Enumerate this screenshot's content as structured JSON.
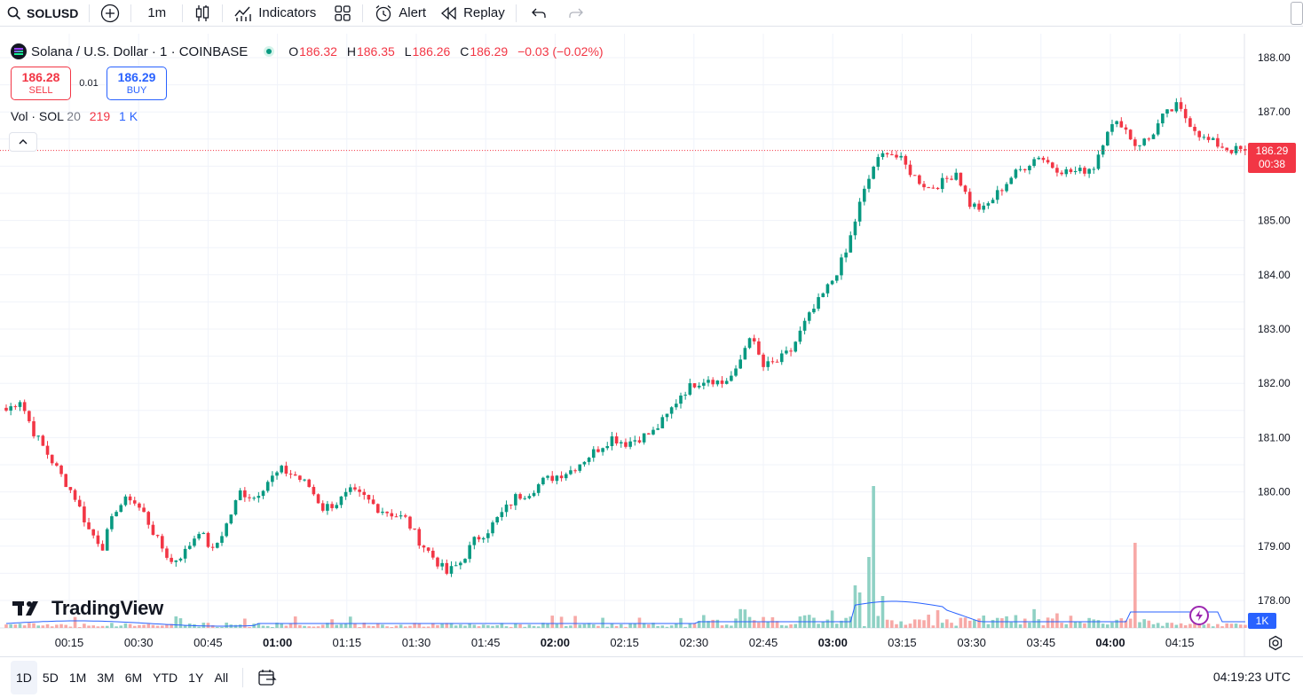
{
  "toolbar": {
    "symbol": "SOLUSD",
    "interval": "1m",
    "indicators_label": "Indicators",
    "alert_label": "Alert",
    "replay_label": "Replay"
  },
  "legend": {
    "title": "Solana / U.S. Dollar · 1 · COINBASE",
    "ohlc": {
      "o_label": "O",
      "o": "186.32",
      "h_label": "H",
      "h": "186.35",
      "l_label": "L",
      "l": "186.26",
      "c_label": "C",
      "c": "186.29",
      "change": "−0.03 (−0.02%)"
    }
  },
  "trade": {
    "sell_price": "186.28",
    "sell_label": "SELL",
    "spread": "0.01",
    "buy_price": "186.29",
    "buy_label": "BUY"
  },
  "volume_legend": {
    "name": "Vol · SOL",
    "length": "20",
    "value": "219",
    "ma_value": "1 K"
  },
  "price_tag": {
    "price": "186.29",
    "countdown": "00:38"
  },
  "volume_tag": "1K",
  "brand": "TradingView",
  "ranges": [
    "1D",
    "5D",
    "1M",
    "3M",
    "6M",
    "YTD",
    "1Y",
    "All"
  ],
  "active_range": "1D",
  "clock": "04:19:23 UTC",
  "colors": {
    "up": "#089981",
    "down": "#f23645",
    "up_vol": "#8fd1c4",
    "down_vol": "#f7a9a7",
    "ma": "#2962ff",
    "grid": "#f0f3fa",
    "accent": "#2962ff"
  },
  "chart_data": {
    "type": "candlestick",
    "interval": "1m",
    "y_ticks": [
      "188.00",
      "187.00",
      "186.00",
      "185.00",
      "184.00",
      "183.00",
      "182.00",
      "181.00",
      "180.00",
      "179.00",
      "178.00"
    ],
    "ylim": [
      177.6,
      188.3
    ],
    "x_ticks": [
      {
        "label": "00:15",
        "bold": false
      },
      {
        "label": "00:30",
        "bold": false
      },
      {
        "label": "00:45",
        "bold": false
      },
      {
        "label": "01:00",
        "bold": true
      },
      {
        "label": "01:15",
        "bold": false
      },
      {
        "label": "01:30",
        "bold": false
      },
      {
        "label": "01:45",
        "bold": false
      },
      {
        "label": "02:00",
        "bold": true
      },
      {
        "label": "02:15",
        "bold": false
      },
      {
        "label": "02:30",
        "bold": false
      },
      {
        "label": "02:45",
        "bold": false
      },
      {
        "label": "03:00",
        "bold": true
      },
      {
        "label": "03:15",
        "bold": false
      },
      {
        "label": "03:30",
        "bold": false
      },
      {
        "label": "03:45",
        "bold": false
      },
      {
        "label": "04:00",
        "bold": true
      },
      {
        "label": "04:15",
        "bold": false
      }
    ],
    "current_price": 186.29,
    "close_path": [
      [
        0,
        181.5
      ],
      [
        3,
        181.7
      ],
      [
        6,
        181.1
      ],
      [
        9,
        180.7
      ],
      [
        12,
        180.3
      ],
      [
        15,
        179.9
      ],
      [
        18,
        179.3
      ],
      [
        21,
        179.0
      ],
      [
        24,
        179.7
      ],
      [
        27,
        179.9
      ],
      [
        30,
        179.6
      ],
      [
        33,
        179.1
      ],
      [
        36,
        178.7
      ],
      [
        39,
        178.9
      ],
      [
        42,
        179.3
      ],
      [
        45,
        178.9
      ],
      [
        48,
        179.4
      ],
      [
        51,
        180.0
      ],
      [
        54,
        179.9
      ],
      [
        57,
        180.2
      ],
      [
        60,
        180.4
      ],
      [
        63,
        180.3
      ],
      [
        66,
        180.1
      ],
      [
        69,
        179.7
      ],
      [
        72,
        179.8
      ],
      [
        75,
        180.0
      ],
      [
        78,
        179.9
      ],
      [
        81,
        179.7
      ],
      [
        84,
        179.6
      ],
      [
        87,
        179.5
      ],
      [
        90,
        179.1
      ],
      [
        93,
        178.8
      ],
      [
        96,
        178.5
      ],
      [
        99,
        178.7
      ],
      [
        102,
        179.1
      ],
      [
        105,
        179.3
      ],
      [
        108,
        179.6
      ],
      [
        111,
        179.9
      ],
      [
        114,
        180.0
      ],
      [
        117,
        180.2
      ],
      [
        120,
        180.3
      ],
      [
        123,
        180.4
      ],
      [
        126,
        180.6
      ],
      [
        129,
        180.8
      ],
      [
        132,
        181.0
      ],
      [
        135,
        180.9
      ],
      [
        138,
        181.0
      ],
      [
        141,
        181.1
      ],
      [
        144,
        181.4
      ],
      [
        147,
        181.8
      ],
      [
        150,
        182.0
      ],
      [
        153,
        182.1
      ],
      [
        156,
        182.0
      ],
      [
        159,
        182.2
      ],
      [
        162,
        182.9
      ],
      [
        165,
        182.3
      ],
      [
        168,
        182.4
      ],
      [
        171,
        182.6
      ],
      [
        174,
        183.1
      ],
      [
        177,
        183.5
      ],
      [
        180,
        183.9
      ],
      [
        183,
        184.4
      ],
      [
        186,
        185.3
      ],
      [
        189,
        186.0
      ],
      [
        192,
        186.3
      ],
      [
        195,
        186.1
      ],
      [
        198,
        185.8
      ],
      [
        201,
        185.6
      ],
      [
        204,
        185.7
      ],
      [
        207,
        185.9
      ],
      [
        210,
        185.3
      ],
      [
        213,
        185.2
      ],
      [
        216,
        185.5
      ],
      [
        219,
        185.8
      ],
      [
        222,
        186.0
      ],
      [
        225,
        186.2
      ],
      [
        228,
        186.0
      ],
      [
        231,
        185.9
      ],
      [
        234,
        185.9
      ],
      [
        237,
        186.0
      ],
      [
        240,
        186.7
      ],
      [
        243,
        186.8
      ],
      [
        246,
        186.4
      ],
      [
        249,
        186.5
      ],
      [
        252,
        186.9
      ],
      [
        255,
        187.1
      ],
      [
        258,
        186.8
      ],
      [
        261,
        186.5
      ],
      [
        264,
        186.4
      ],
      [
        267,
        186.3
      ],
      [
        270,
        186.29
      ]
    ],
    "volume_spikes": [
      [
        189,
        40
      ],
      [
        188,
        20
      ],
      [
        246,
        24
      ],
      [
        185,
        12
      ],
      [
        186,
        10
      ],
      [
        191,
        9
      ]
    ]
  }
}
